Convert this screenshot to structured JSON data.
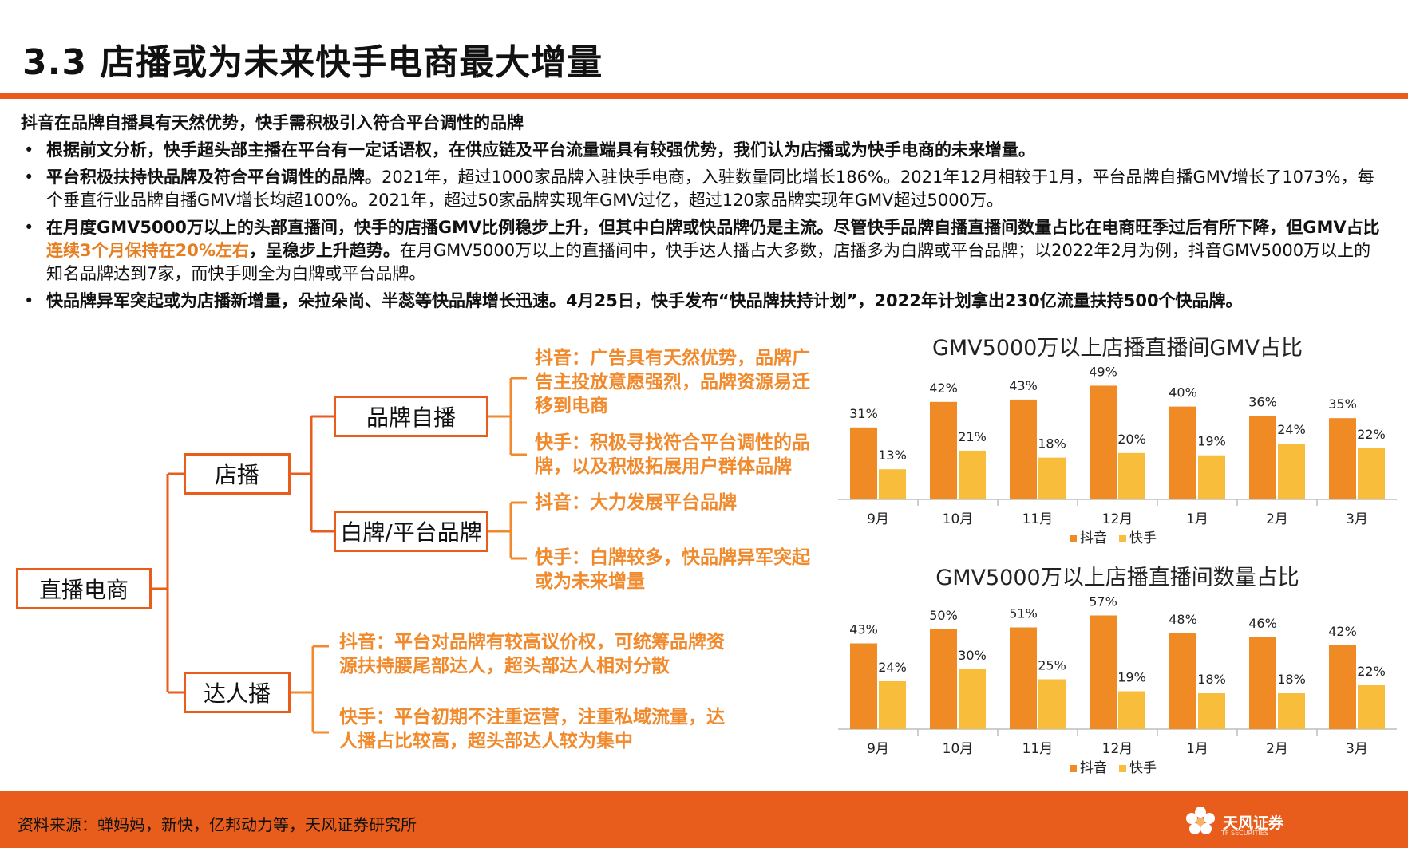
{
  "title": "3.3 店播或为未来快手电商最大增量",
  "intro": "抖音在品牌自播具有天然优势，快手需积极引入符合平台调性的品牌",
  "bullets": [
    {
      "bold": "根据前文分析，快手超头部主播在平台有一定话语权，在供应链及平台流量端具有较强优势，我们认为店播或为快手电商的未来增量。",
      "rest": ""
    },
    {
      "bold": "平台积极扶持快品牌及符合平台调性的品牌。",
      "rest": "2021年，超过1000家品牌入驻快手电商，入驻数量同比增长186%。2021年12月相较于1月，平台品牌自播GMV增长了1073%，每个垂直行业品牌自播GMV增长均超100%。2021年，超过50家品牌实现年GMV过亿，超过120家品牌实现年GMV超过5000万。"
    },
    {
      "bold": "在月度GMV5000万以上的头部直播间，快手的店播GMV比例稳步上升，但其中白牌或快品牌仍是主流。尽管快手品牌自播直播间数量占比在电商旺季过后有所下降，但GMV占比",
      "highlight": "连续3个月保持在20%左右",
      "bold2": "，呈稳步上升趋势。",
      "rest": "在月GMV5000万以上的直播间中，快手达人播占大多数，店播多为白牌或平台品牌；以2022年2月为例，抖音GMV5000万以上的知名品牌达到7家，而快手则全为白牌或平台品牌。"
    },
    {
      "bold": "快品牌异军突起或为店播新增量，朵拉朵尚、半蕊等快品牌增长迅速。4月25日，快手发布“快品牌扶持计划”，2022年计划拿出230亿流量扶持500个快品牌。",
      "rest": ""
    }
  ],
  "bullet_symbol": "•",
  "tree": {
    "root": "直播电商",
    "store": "店播",
    "brand": "品牌自播",
    "white": "白牌/平台品牌",
    "kol": "达人播",
    "notes": {
      "brand_douyin": "抖音：广告具有天然优势，品牌广告主投放意愿强烈，品牌资源易迁移到电商",
      "brand_kuaishou": "快手：积极寻找符合平台调性的品牌，以及积极拓展用户群体品牌",
      "white_douyin": "抖音：大力发展平台品牌",
      "white_kuaishou": "快手：白牌较多，快品牌异军突起或为未来增量",
      "kol_douyin": "抖音：平台对品牌有较高议价权，可统筹品牌资源扶持腰尾部达人，超头部达人相对分散",
      "kol_kuaishou": "快手：平台初期不注重运营，注重私域流量，达人播占比较高，超头部达人较为集中"
    }
  },
  "chart_data": [
    {
      "type": "bar",
      "title": "GMV5000万以上店播直播间GMV占比",
      "categories": [
        "9月",
        "10月",
        "11月",
        "12月",
        "1月",
        "2月",
        "3月"
      ],
      "series": [
        {
          "name": "抖音",
          "values": [
            31,
            42,
            43,
            49,
            40,
            36,
            35
          ],
          "color": "#f08a24"
        },
        {
          "name": "快手",
          "values": [
            13,
            21,
            18,
            20,
            19,
            24,
            22
          ],
          "color": "#f9bd3c"
        }
      ],
      "value_suffix": "%",
      "ylim": [
        0,
        55
      ],
      "legend": "bottom",
      "grid": false
    },
    {
      "type": "bar",
      "title": "GMV5000万以上店播直播间数量占比",
      "categories": [
        "9月",
        "10月",
        "11月",
        "12月",
        "1月",
        "2月",
        "3月"
      ],
      "series": [
        {
          "name": "抖音",
          "values": [
            43,
            50,
            51,
            57,
            48,
            46,
            42
          ],
          "color": "#f08a24"
        },
        {
          "name": "快手",
          "values": [
            24,
            30,
            25,
            19,
            18,
            18,
            22
          ],
          "color": "#f9bd3c"
        }
      ],
      "value_suffix": "%",
      "ylim": [
        0,
        64
      ],
      "legend": "bottom",
      "grid": false
    }
  ],
  "footer": {
    "source": "资料来源：蝉妈妈，新快，亿邦动力等，天风证券研究所",
    "logo": "天风证券",
    "logo_sub": "TF SECURITIES"
  }
}
